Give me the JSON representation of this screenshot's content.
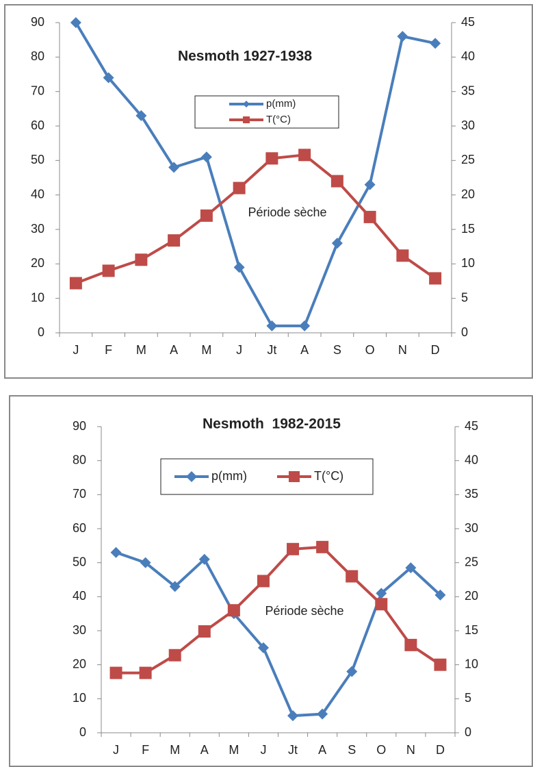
{
  "chart_data": [
    {
      "type": "line",
      "title": "Nesmoth 1927-1938",
      "categories": [
        "J",
        "F",
        "M",
        "A",
        "M",
        "J",
        "Jt",
        "A",
        "S",
        "O",
        "N",
        "D"
      ],
      "series": [
        {
          "name": "p(mm)",
          "color": "#4a7ebb",
          "marker": "diamond",
          "axis": "y",
          "values": [
            90,
            74,
            63,
            48,
            51,
            19,
            2,
            2,
            26,
            43,
            86,
            84
          ]
        },
        {
          "name": "T(°C)",
          "color": "#be4b48",
          "marker": "square",
          "axis": "y2",
          "values": [
            7.2,
            9,
            10.6,
            13.4,
            17,
            21,
            25.3,
            25.8,
            22,
            16.8,
            11.2,
            7.9
          ]
        }
      ],
      "ylim": [
        0,
        90
      ],
      "yticks": [
        0,
        10,
        20,
        30,
        40,
        50,
        60,
        70,
        80,
        90
      ],
      "y2lim": [
        0,
        45
      ],
      "y2ticks": [
        0,
        5,
        10,
        15,
        20,
        25,
        30,
        35,
        40,
        45
      ],
      "annotation": "Période sèche"
    },
    {
      "type": "line",
      "title": "Nesmoth  1982-2015",
      "categories": [
        "J",
        "F",
        "M",
        "A",
        "M",
        "J",
        "Jt",
        "A",
        "S",
        "O",
        "N",
        "D"
      ],
      "series": [
        {
          "name": "p(mm)",
          "color": "#4a7ebb",
          "marker": "diamond",
          "axis": "y",
          "values": [
            53,
            50,
            43,
            51,
            35,
            25,
            5,
            5.5,
            18,
            41,
            48.5,
            40.5
          ]
        },
        {
          "name": "T(°C)",
          "color": "#be4b48",
          "marker": "square",
          "axis": "y2",
          "values": [
            8.8,
            8.8,
            11.4,
            14.9,
            18,
            22.3,
            27,
            27.3,
            23,
            18.9,
            12.9,
            10
          ]
        }
      ],
      "ylim": [
        0,
        90
      ],
      "yticks": [
        0,
        10,
        20,
        30,
        40,
        50,
        60,
        70,
        80,
        90
      ],
      "y2lim": [
        0,
        45
      ],
      "y2ticks": [
        0,
        5,
        10,
        15,
        20,
        25,
        30,
        35,
        40,
        45
      ],
      "annotation": "Période sèche"
    }
  ]
}
